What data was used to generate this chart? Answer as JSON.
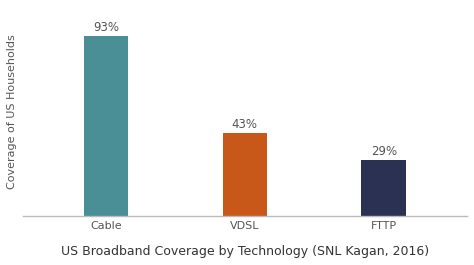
{
  "categories": [
    "Cable",
    "VDSL",
    "FTTP"
  ],
  "values": [
    93,
    43,
    29
  ],
  "bar_colors": [
    "#4a8f96",
    "#c8571a",
    "#2b3152"
  ],
  "value_labels": [
    "93%",
    "43%",
    "29%"
  ],
  "ylabel": "Coverage of US Households",
  "xlabel": "US Broadband Coverage by Technology (SNL Kagan, 2016)",
  "ylim": [
    0,
    108
  ],
  "background_color": "#ffffff",
  "bar_width": 0.32,
  "label_fontsize": 8.5,
  "tick_fontsize": 8,
  "xlabel_fontsize": 9,
  "ylabel_fontsize": 8,
  "spine_color": "#bbbbbb"
}
